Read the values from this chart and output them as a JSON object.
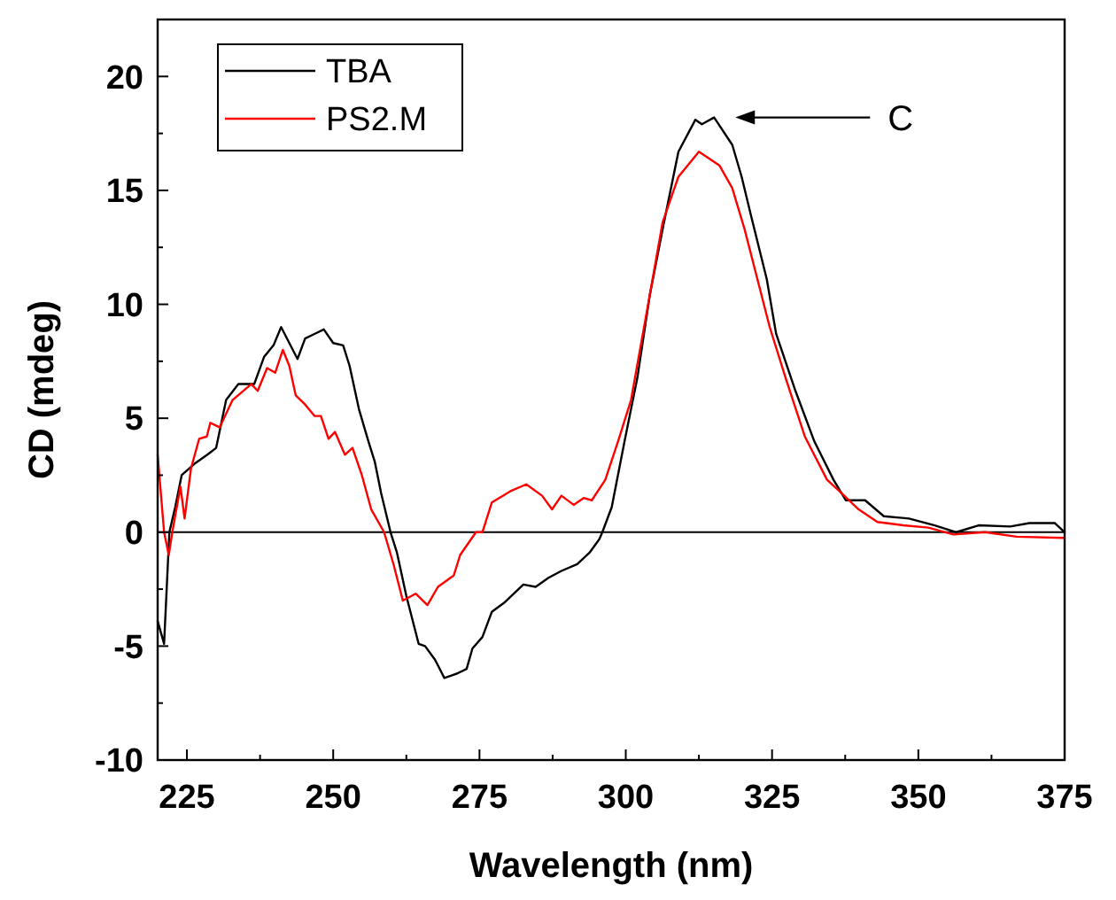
{
  "chart_data": {
    "type": "line",
    "xlabel": "Wavelength (nm)",
    "ylabel": "CD (mdeg)",
    "xlim": [
      220,
      375
    ],
    "ylim": [
      -10,
      22.5
    ],
    "xticks": [
      225,
      {
        "value": 237.5,
        "label": null
      },
      250,
      {
        "value": 262.5,
        "label": null
      },
      275,
      {
        "value": 287.5,
        "label": null
      },
      300,
      {
        "value": 312.5,
        "label": null
      },
      325,
      {
        "value": 337.5,
        "label": null
      },
      350,
      {
        "value": 362.5,
        "label": null
      },
      375
    ],
    "yticks": [
      -10,
      {
        "value": -7.5,
        "label": null
      },
      -5,
      {
        "value": -2.5,
        "label": null
      },
      0,
      {
        "value": 2.5,
        "label": null
      },
      5,
      {
        "value": 7.5,
        "label": null
      },
      10,
      {
        "value": 12.5,
        "label": null
      },
      15,
      {
        "value": 17.5,
        "label": null
      },
      20
    ],
    "grid": false,
    "legend": "top left",
    "marker": "none",
    "line_style": "solid",
    "ref_lines": [
      {
        "axis": "y",
        "value": 0,
        "color": "#000000"
      }
    ],
    "annotations": [
      "C"
    ],
    "series": [
      {
        "name": "TBA",
        "color": "#000000",
        "x": [
          220,
          221.1,
          222,
          223,
          224.1,
          226.3,
          228.5,
          230,
          231.7,
          233.8,
          236.5,
          238.2,
          239.8,
          241.1,
          242.5,
          243.9,
          245.2,
          246.8,
          248.4,
          250,
          251.7,
          252.8,
          254.4,
          256,
          257.1,
          258.2,
          259.8,
          260.9,
          262.5,
          264.6,
          265.7,
          267.4,
          269,
          271.2,
          272.8,
          273.8,
          275.5,
          277.1,
          279.2,
          282.5,
          284.6,
          286.8,
          289,
          291.7,
          293.8,
          295.5,
          296,
          297.6,
          299.8,
          302,
          304.1,
          306.3,
          309,
          311.9,
          313,
          315.1,
          318.2,
          319.8,
          321.4,
          324.1,
          325.7,
          329,
          332.2,
          335.5,
          337.6,
          340.9,
          344.1,
          348.4,
          352.8,
          356.5,
          360.3,
          365.7,
          369,
          373.3,
          375
        ],
        "values": [
          -3.9,
          -4.9,
          0,
          1.1,
          2.5,
          3,
          3.4,
          3.7,
          5.8,
          6.5,
          6.5,
          7.7,
          8.2,
          9,
          8.3,
          7.6,
          8.5,
          8.7,
          8.9,
          8.3,
          8.2,
          7.3,
          5.4,
          4,
          3.1,
          1.7,
          0,
          -0.9,
          -2.8,
          -4.9,
          -5,
          -5.6,
          -6.4,
          -6.2,
          -6,
          -5.1,
          -4.6,
          -3.5,
          -3.1,
          -2.3,
          -2.4,
          -2,
          -1.7,
          -1.4,
          -0.9,
          -0.3,
          0,
          1.1,
          4,
          6.8,
          10.4,
          13.3,
          16.7,
          18.1,
          17.9,
          18.2,
          17,
          15.6,
          13.9,
          11.1,
          8.7,
          6.2,
          4,
          2.3,
          1.4,
          1.4,
          0.7,
          0.6,
          0.3,
          0,
          0.3,
          0.25,
          0.4,
          0.4,
          0
        ]
      },
      {
        "name": "PS2.M",
        "color": "#ff0000",
        "x": [
          220,
          221.1,
          221.9,
          222.5,
          223.9,
          224.6,
          225.7,
          227.1,
          228.4,
          229,
          230.6,
          232.8,
          236,
          237.1,
          238.7,
          240.1,
          241.4,
          242.5,
          243.6,
          245.2,
          246.8,
          247.9,
          249.2,
          250.3,
          252,
          253.3,
          254.9,
          256.5,
          258.7,
          260.3,
          261.9,
          264.1,
          266.1,
          267.9,
          270.6,
          271.7,
          274.4,
          275.5,
          277.1,
          280.3,
          283,
          285.7,
          287.4,
          289,
          291.1,
          292.8,
          294.2,
          296.5,
          298.7,
          300.9,
          304.1,
          306.3,
          309,
          312.5,
          316,
          318.2,
          320.3,
          322.5,
          324.6,
          327.4,
          330.6,
          334.4,
          336.5,
          339.8,
          343,
          347.4,
          351.7,
          356,
          361.4,
          366.8,
          375
        ],
        "values": [
          3.4,
          0,
          -1,
          0,
          2,
          0.6,
          2.8,
          4.1,
          4.2,
          4.8,
          4.6,
          5.8,
          6.5,
          6.2,
          7.2,
          7,
          8,
          7.3,
          6,
          5.6,
          5.1,
          5.1,
          4.1,
          4.4,
          3.4,
          3.7,
          2.5,
          1,
          0,
          -1.4,
          -3,
          -2.7,
          -3.2,
          -2.4,
          -1.9,
          -1,
          0,
          0,
          1.3,
          1.8,
          2.1,
          1.6,
          1,
          1.6,
          1.2,
          1.5,
          1.4,
          2.3,
          4,
          5.8,
          10.4,
          13.6,
          15.6,
          16.7,
          16.1,
          15.1,
          13.3,
          11.1,
          9,
          6.7,
          4.2,
          2.3,
          1.8,
          1,
          0.45,
          0.3,
          0.2,
          -0.1,
          0,
          -0.2,
          -0.25
        ]
      }
    ]
  }
}
